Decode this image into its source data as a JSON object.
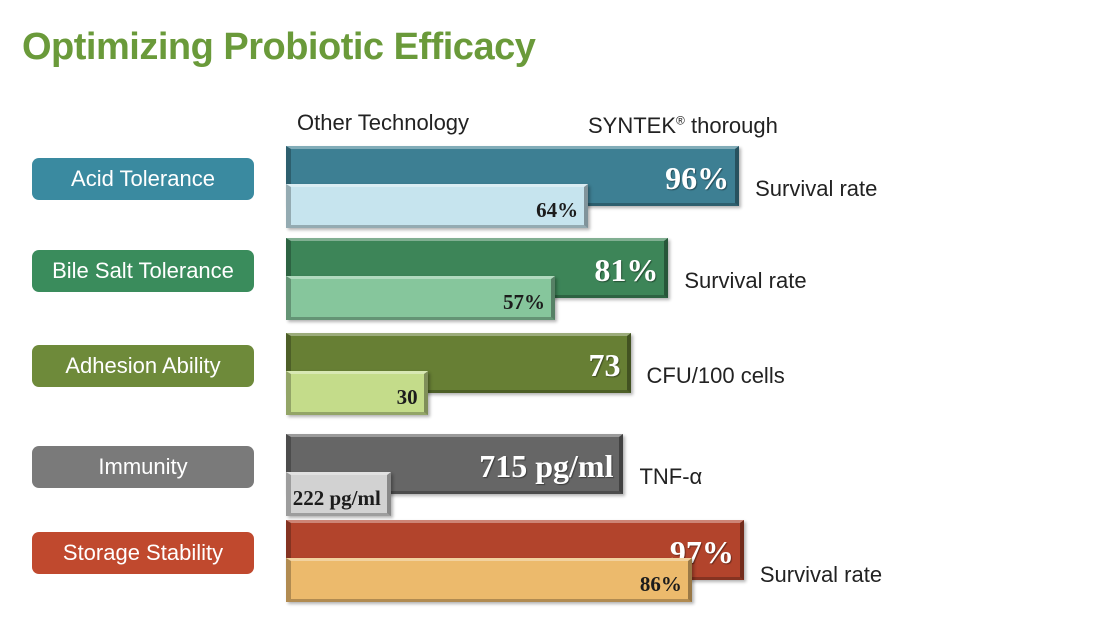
{
  "title": "Optimizing Probiotic Efficacy",
  "title_color": "#6a9a3a",
  "legend": {
    "other": "Other Technology",
    "syntek_prefix": "SYNTEK",
    "syntek_mark": "®",
    "syntek_suffix": " thorough"
  },
  "chart_data": {
    "type": "bar",
    "categories": [
      "Acid Tolerance",
      "Bile Salt Tolerance",
      "Adhesion Ability",
      "Immunity",
      "Storage Stability"
    ],
    "series": [
      {
        "name": "SYNTEK® thorough",
        "values": [
          96,
          81,
          73,
          715,
          97
        ],
        "labels": [
          "96%",
          "81%",
          "73",
          "715 pg/ml",
          "97%"
        ]
      },
      {
        "name": "Other Technology",
        "values": [
          64,
          57,
          30,
          222,
          86
        ],
        "labels": [
          "64%",
          "57%",
          "30",
          "222 pg/ml",
          "86%"
        ]
      }
    ],
    "units": [
      "Survival rate",
      "Survival rate",
      "CFU/100 cells",
      "TNF-α",
      "Survival rate"
    ],
    "scale_max": [
      100,
      100,
      100,
      1000,
      100
    ],
    "colors": [
      {
        "pill": "#3a8aa0",
        "main": "#3d7f93",
        "other": "#c6e4ee"
      },
      {
        "pill": "#3a8c5c",
        "main": "#3d8558",
        "other": "#86c69c"
      },
      {
        "pill": "#6e8a3a",
        "main": "#677f34",
        "other": "#c4dc8a"
      },
      {
        "pill": "#7a7a7a",
        "main": "#666666",
        "other": "#d2d2d2"
      },
      {
        "pill": "#c0492e",
        "main": "#b2442c",
        "other": "#ecba6c"
      }
    ]
  }
}
